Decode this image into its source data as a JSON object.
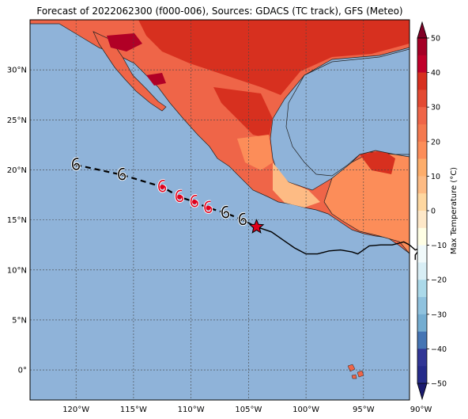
{
  "title": "Forecast of 2022062300 (f000-006), Sources: GDACS (TC track), GFS (Meteo)",
  "map": {
    "lon_range": [
      -124,
      -91
    ],
    "lat_range": [
      -3,
      35
    ],
    "lon_ticks": [
      "120°W",
      "115°W",
      "110°W",
      "105°W",
      "100°W",
      "95°W",
      "90°W"
    ],
    "lat_ticks": [
      "0°",
      "5°N",
      "10°N",
      "15°N",
      "20°N",
      "25°N",
      "30°N"
    ],
    "ocean_color": "#8fb3d9",
    "grid": true
  },
  "colorbar": {
    "label": "Max Temperature (°C)",
    "ticks": [
      "50",
      "40",
      "30",
      "20",
      "10",
      "0",
      "−10",
      "−20",
      "−30",
      "−40",
      "−50"
    ],
    "colors": [
      "#800026",
      "#b10026",
      "#d7301f",
      "#ef6548",
      "#fc8d59",
      "#fdbb84",
      "#fee8c8",
      "#ffffe5",
      "#f7fcfd",
      "#e0f3f8",
      "#abd9e9",
      "#74add1",
      "#4575b4",
      "#313695",
      "#1e2a82",
      "#1a1a6e"
    ]
  },
  "track": {
    "forecast_points": [
      [
        -120,
        20.5
      ],
      [
        -116,
        19.5
      ],
      [
        -112.5,
        18.3
      ],
      [
        -111,
        17.3
      ],
      [
        -109.7,
        16.8
      ],
      [
        -108.5,
        16.2
      ],
      [
        -107,
        15.7
      ]
    ],
    "observed_points": [
      [
        -105.5,
        15.0
      ],
      [
        -104.3,
        14.3
      ]
    ],
    "current_position": [
      -104.3,
      14.3
    ],
    "red_points": [
      [
        -112.5,
        18.3
      ],
      [
        -111,
        17.3
      ],
      [
        -109.7,
        16.8
      ],
      [
        -108.5,
        16.2
      ]
    ],
    "icons": [
      "cyclone-icon",
      "star-icon"
    ]
  }
}
